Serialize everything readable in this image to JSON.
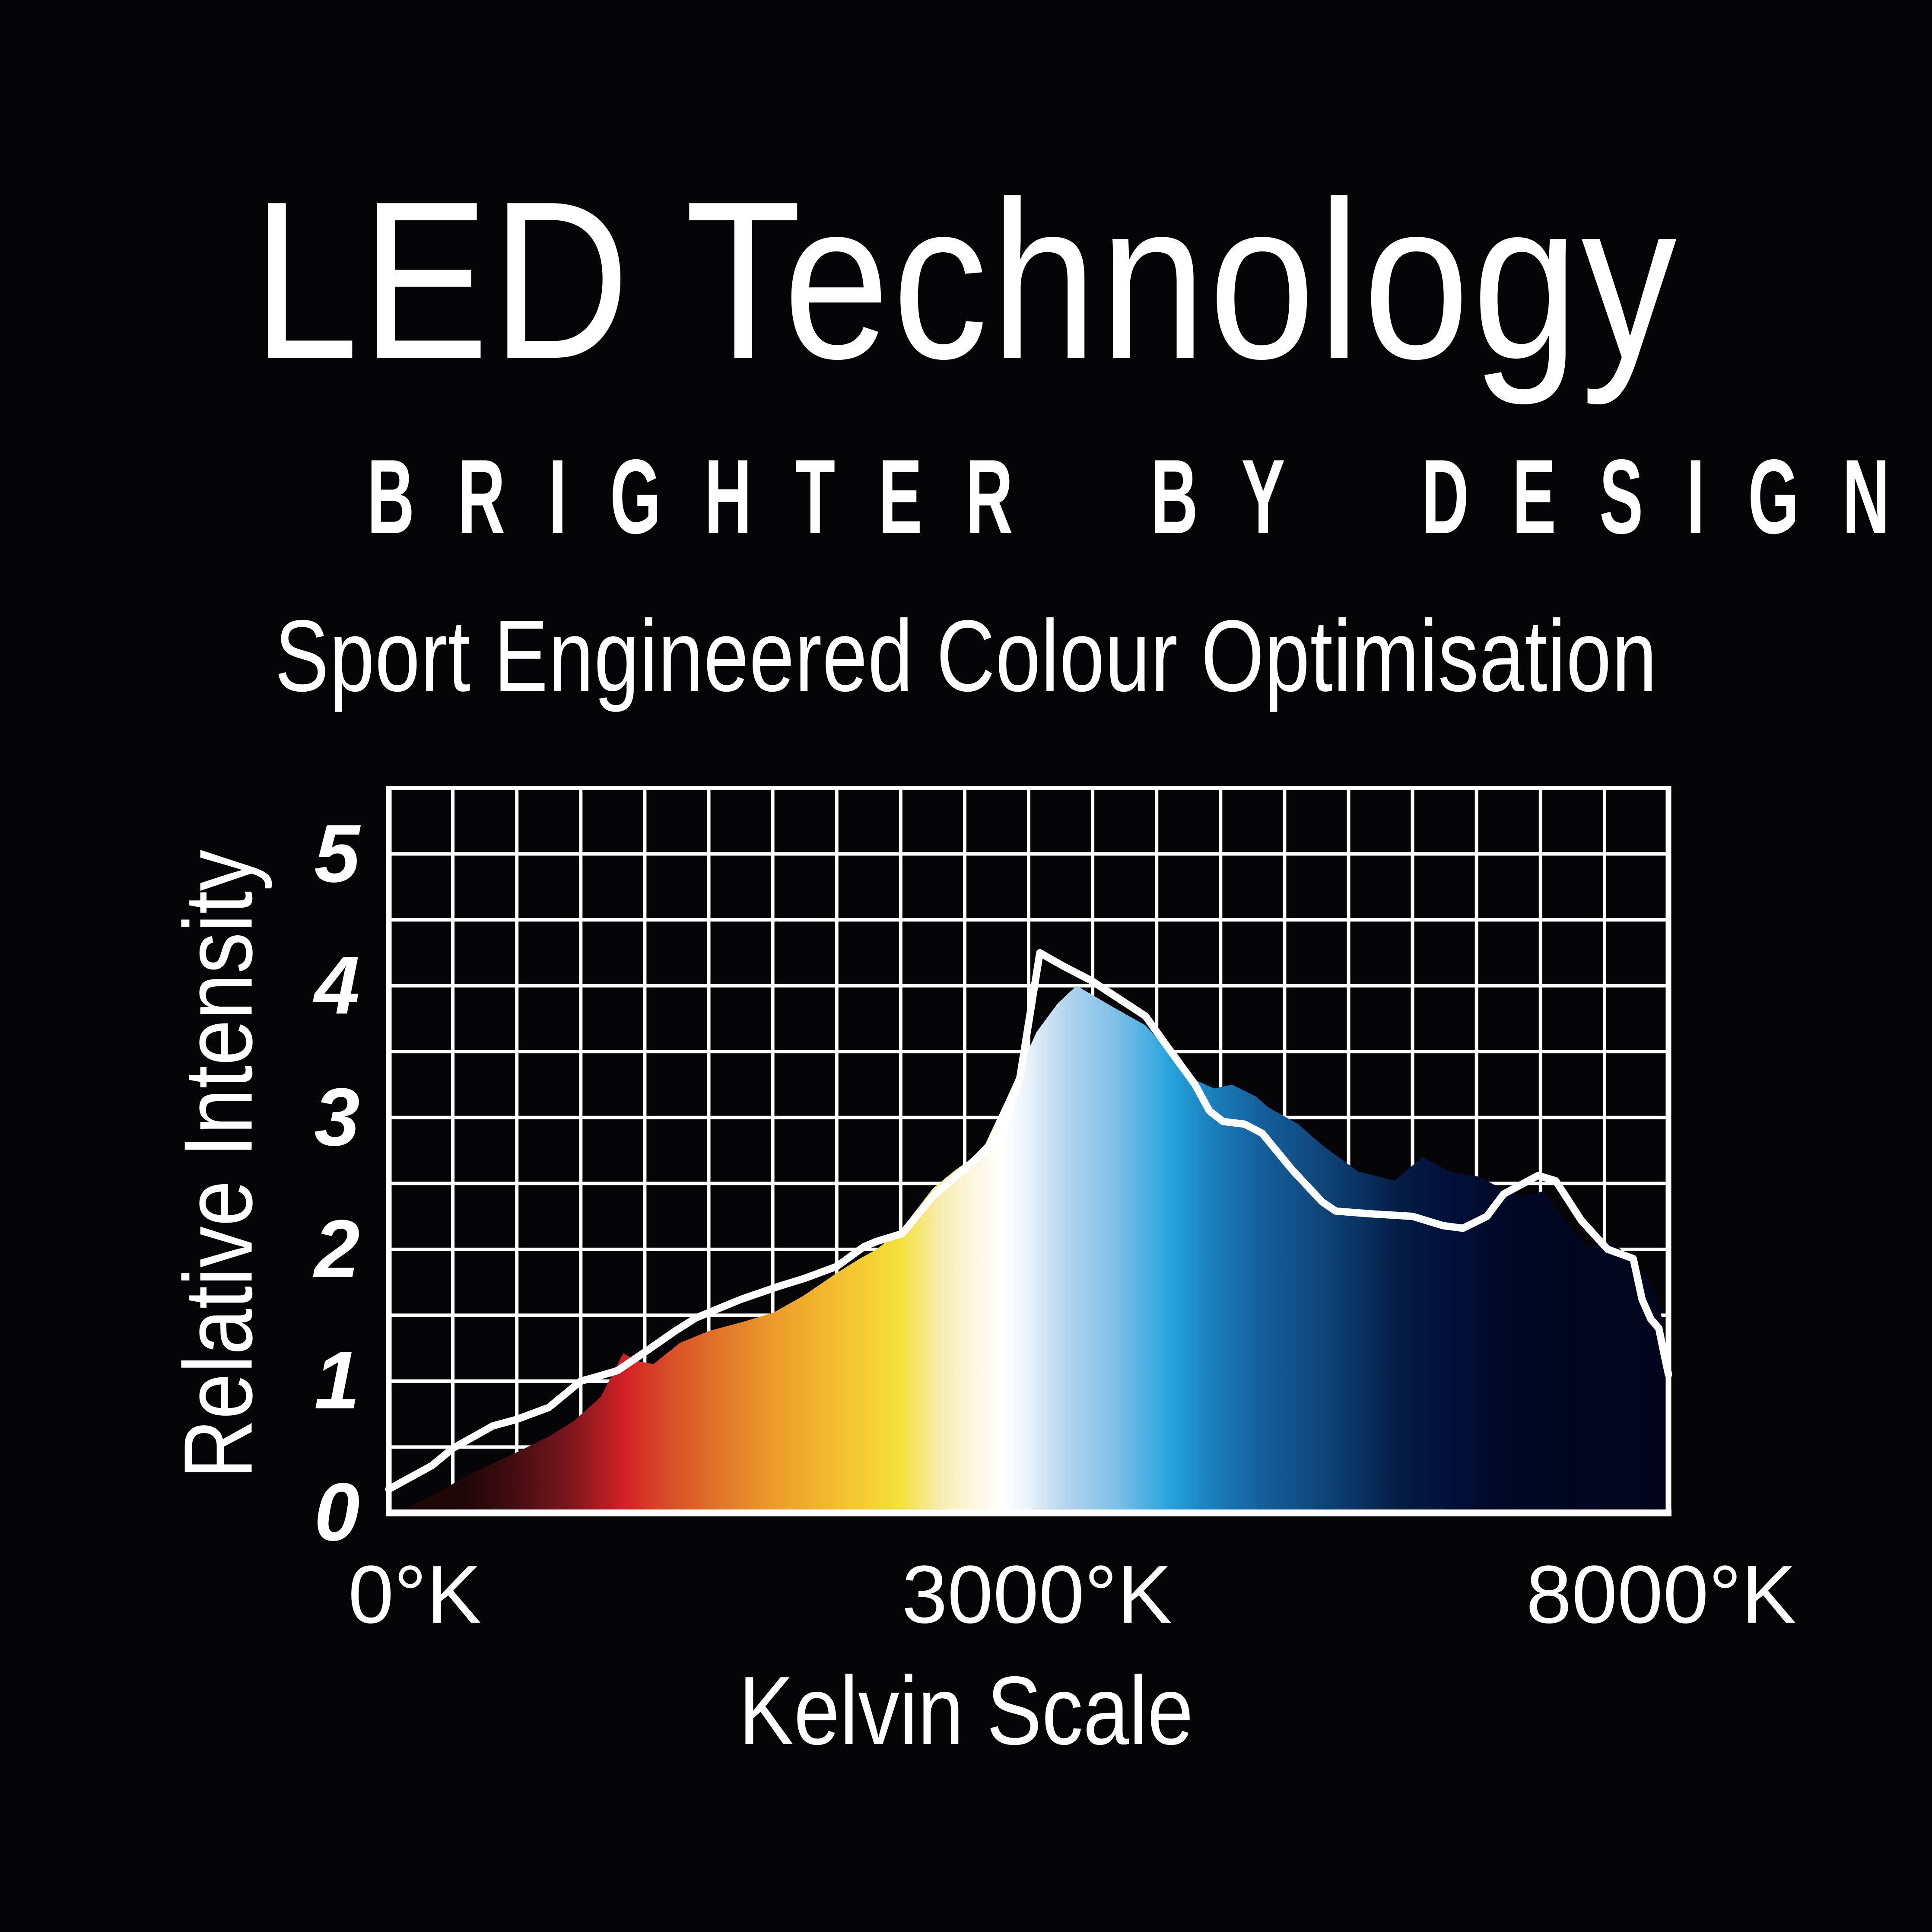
{
  "background_color": "#050507",
  "text_color": "#ffffff",
  "header": {
    "title": "LED Technology",
    "tagline": "BRIGHTER BY DESIGN",
    "subtitle": "Sport Engineered Colour Optimisation"
  },
  "chart_data": {
    "type": "area+line",
    "title": "",
    "xlabel": "Kelvin Scale",
    "ylabel": "Relative Intensity",
    "x_unit": "°K",
    "x_range": [
      0,
      8000
    ],
    "y_range": [
      0,
      5.5
    ],
    "grid": {
      "columns": 20,
      "rows": 11,
      "on": true,
      "color": "#ffffff"
    },
    "x_ticks": [
      {
        "label": "0°K",
        "position": 0.02
      },
      {
        "label": "3000°K",
        "position": 0.5
      },
      {
        "label": "8000°K",
        "position": 0.995
      }
    ],
    "y_ticks": [
      "5",
      "4",
      "3",
      "2",
      "1",
      "0"
    ],
    "series": [
      {
        "name": "spectrum-area",
        "type": "area",
        "fill": "kelvin-spectrum-gradient",
        "gradient_stops": [
          {
            "offset": 0.0,
            "color": "#1a0507"
          },
          {
            "offset": 0.06,
            "color": "#200609"
          },
          {
            "offset": 0.1,
            "color": "#450d13"
          },
          {
            "offset": 0.14,
            "color": "#7a161d"
          },
          {
            "offset": 0.185,
            "color": "#d32127"
          },
          {
            "offset": 0.22,
            "color": "#d94f28"
          },
          {
            "offset": 0.26,
            "color": "#e27629"
          },
          {
            "offset": 0.3,
            "color": "#eb9a2b"
          },
          {
            "offset": 0.34,
            "color": "#f2b72e"
          },
          {
            "offset": 0.38,
            "color": "#f5d334"
          },
          {
            "offset": 0.4,
            "color": "#f4e13c"
          },
          {
            "offset": 0.43,
            "color": "#f7ecae"
          },
          {
            "offset": 0.46,
            "color": "#fdf8e3"
          },
          {
            "offset": 0.48,
            "color": "#ffffff"
          },
          {
            "offset": 0.5,
            "color": "#e9f2fa"
          },
          {
            "offset": 0.53,
            "color": "#b1d4ee"
          },
          {
            "offset": 0.565,
            "color": "#84c1e8"
          },
          {
            "offset": 0.61,
            "color": "#27a3dc"
          },
          {
            "offset": 0.64,
            "color": "#1b82c0"
          },
          {
            "offset": 0.68,
            "color": "#15609c"
          },
          {
            "offset": 0.72,
            "color": "#104a80"
          },
          {
            "offset": 0.76,
            "color": "#0a3260"
          },
          {
            "offset": 0.79,
            "color": "#041c44"
          },
          {
            "offset": 0.83,
            "color": "#02103a"
          },
          {
            "offset": 0.878,
            "color": "#010723"
          },
          {
            "offset": 1.0,
            "color": "#02051c"
          }
        ],
        "points": [
          [
            80,
            0.02
          ],
          [
            270,
            0.13
          ],
          [
            500,
            0.29
          ],
          [
            800,
            0.46
          ],
          [
            1000,
            0.58
          ],
          [
            1160,
            0.7
          ],
          [
            1325,
            0.88
          ],
          [
            1465,
            1.21
          ],
          [
            1560,
            1.15
          ],
          [
            1655,
            1.13
          ],
          [
            1820,
            1.29
          ],
          [
            2000,
            1.38
          ],
          [
            2215,
            1.45
          ],
          [
            2405,
            1.52
          ],
          [
            2595,
            1.65
          ],
          [
            2800,
            1.82
          ],
          [
            2945,
            1.93
          ],
          [
            3050,
            2.0
          ],
          [
            3210,
            2.16
          ],
          [
            3400,
            2.46
          ],
          [
            3540,
            2.6
          ],
          [
            3635,
            2.68
          ],
          [
            3730,
            2.8
          ],
          [
            3865,
            3.15
          ],
          [
            4050,
            3.65
          ],
          [
            4185,
            3.87
          ],
          [
            4300,
            4.0
          ],
          [
            4510,
            3.85
          ],
          [
            4730,
            3.7
          ],
          [
            4915,
            3.45
          ],
          [
            5050,
            3.28
          ],
          [
            5160,
            3.22
          ],
          [
            5270,
            3.25
          ],
          [
            5420,
            3.16
          ],
          [
            5495,
            3.08
          ],
          [
            5685,
            2.95
          ],
          [
            5835,
            2.79
          ],
          [
            6060,
            2.59
          ],
          [
            6290,
            2.52
          ],
          [
            6460,
            2.7
          ],
          [
            6630,
            2.59
          ],
          [
            6820,
            2.55
          ],
          [
            6970,
            2.45
          ],
          [
            7105,
            2.4
          ],
          [
            7215,
            2.44
          ],
          [
            7315,
            2.28
          ],
          [
            7490,
            2.02
          ],
          [
            7660,
            2.05
          ],
          [
            7870,
            1.79
          ],
          [
            7940,
            1.6
          ],
          [
            7985,
            1.3
          ],
          [
            8000,
            1.25
          ]
        ]
      },
      {
        "name": "reference-line",
        "type": "line",
        "color": "#ffffff",
        "stroke_width": 17,
        "points": [
          [
            0,
            0.18
          ],
          [
            270,
            0.36
          ],
          [
            400,
            0.49
          ],
          [
            650,
            0.66
          ],
          [
            800,
            0.71
          ],
          [
            1000,
            0.8
          ],
          [
            1200,
            1.0
          ],
          [
            1290,
            1.03
          ],
          [
            1430,
            1.08
          ],
          [
            1600,
            1.22
          ],
          [
            1790,
            1.38
          ],
          [
            1920,
            1.48
          ],
          [
            2200,
            1.62
          ],
          [
            2440,
            1.72
          ],
          [
            2600,
            1.78
          ],
          [
            2800,
            1.87
          ],
          [
            2970,
            2.02
          ],
          [
            3050,
            2.06
          ],
          [
            3210,
            2.12
          ],
          [
            3400,
            2.4
          ],
          [
            3610,
            2.62
          ],
          [
            3820,
            2.85
          ],
          [
            3945,
            3.3
          ],
          [
            4070,
            4.25
          ],
          [
            4215,
            4.15
          ],
          [
            4390,
            4.04
          ],
          [
            4730,
            3.77
          ],
          [
            4860,
            3.55
          ],
          [
            5040,
            3.25
          ],
          [
            5130,
            3.05
          ],
          [
            5215,
            2.97
          ],
          [
            5350,
            2.95
          ],
          [
            5460,
            2.88
          ],
          [
            5650,
            2.6
          ],
          [
            5835,
            2.36
          ],
          [
            5920,
            2.29
          ],
          [
            6130,
            2.27
          ],
          [
            6400,
            2.25
          ],
          [
            6590,
            2.18
          ],
          [
            6715,
            2.16
          ],
          [
            6865,
            2.25
          ],
          [
            6970,
            2.42
          ],
          [
            7185,
            2.56
          ],
          [
            7295,
            2.52
          ],
          [
            7455,
            2.22
          ],
          [
            7620,
            2.0
          ],
          [
            7780,
            1.93
          ],
          [
            7835,
            1.62
          ],
          [
            7890,
            1.47
          ],
          [
            7940,
            1.4
          ],
          [
            7970,
            1.22
          ],
          [
            8000,
            1.05
          ]
        ]
      }
    ]
  }
}
